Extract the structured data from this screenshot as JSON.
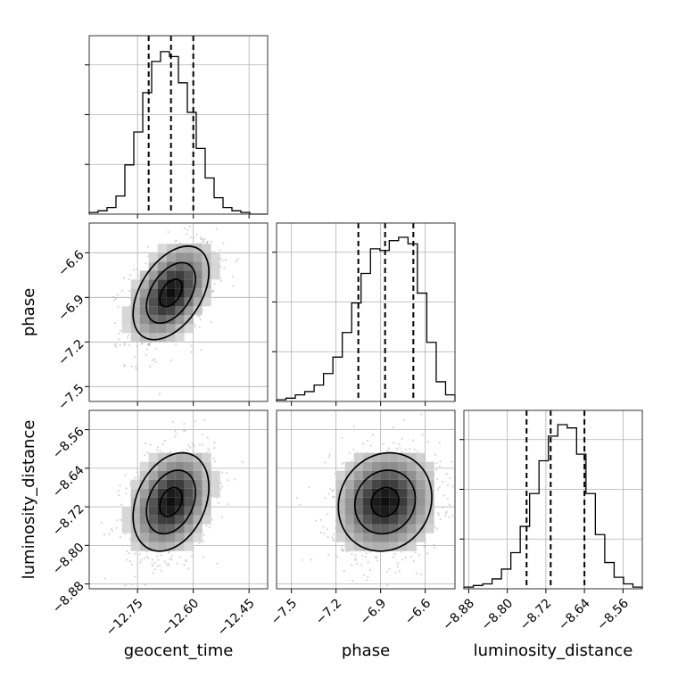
{
  "chart_data": {
    "type": "corner",
    "params": [
      "geocent_time",
      "phase",
      "luminosity_distance"
    ],
    "axis_labels": {
      "geocent_time": "geocent_time",
      "phase": "phase",
      "luminosity_distance": "luminosity_distance"
    },
    "ranges": {
      "geocent_time": [
        -12.88,
        -12.4
      ],
      "phase": [
        -7.6,
        -6.4
      ],
      "luminosity_distance": [
        -8.89,
        -8.52
      ]
    },
    "ticks": {
      "geocent_time": [
        -12.75,
        -12.6,
        -12.45
      ],
      "phase": [
        -7.5,
        -7.2,
        -6.9,
        -6.6
      ],
      "luminosity_distance": [
        -8.88,
        -8.8,
        -8.72,
        -8.64,
        -8.56
      ]
    },
    "tick_labels": {
      "geocent_time": [
        "−12.75",
        "−12.60",
        "−12.45"
      ],
      "phase": [
        "−7.5",
        "−7.2",
        "−6.9",
        "−6.6"
      ],
      "luminosity_distance": [
        "−8.88",
        "−8.80",
        "−8.72",
        "−8.64",
        "−8.56"
      ]
    },
    "quantiles": {
      "geocent_time": [
        -12.72,
        -12.66,
        -12.6
      ],
      "phase": [
        -7.05,
        -6.87,
        -6.68
      ],
      "luminosity_distance": [
        -8.76,
        -8.71,
        -8.64
      ]
    },
    "histograms": {
      "geocent_time": [
        0.01,
        0.02,
        0.04,
        0.11,
        0.3,
        0.5,
        0.74,
        0.93,
        0.99,
        0.96,
        0.8,
        0.62,
        0.4,
        0.22,
        0.1,
        0.04,
        0.02,
        0.01,
        0,
        0
      ],
      "phase": [
        0.01,
        0.02,
        0.04,
        0.06,
        0.1,
        0.17,
        0.27,
        0.42,
        0.6,
        0.78,
        0.93,
        0.92,
        0.98,
        1.0,
        0.96,
        0.66,
        0.36,
        0.12,
        0.04
      ],
      "luminosity_distance": [
        0.01,
        0.02,
        0.03,
        0.06,
        0.12,
        0.22,
        0.38,
        0.58,
        0.78,
        0.93,
        1.0,
        0.98,
        0.82,
        0.58,
        0.33,
        0.16,
        0.07,
        0.03,
        0.01
      ]
    },
    "correlations": {
      "phase|geocent_time": 0.45,
      "luminosity_distance|geocent_time": 0.3,
      "luminosity_distance|phase": 0.1
    },
    "marginal_y_ticks": 3,
    "grid": true,
    "contour_levels": 3
  }
}
